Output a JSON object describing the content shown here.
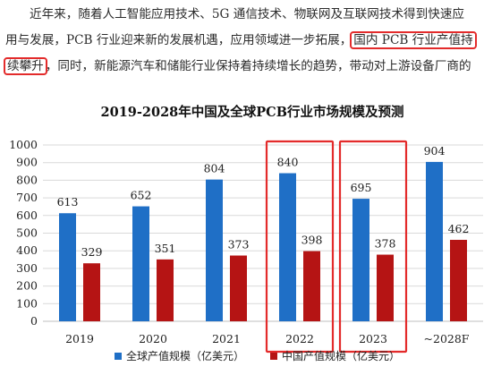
{
  "paragraph": {
    "line1": "近年来，随着人工智能应用技术、5G 通信技术、物联网及互联网技术得到快速应",
    "line2_a": "用与发展，PCB 行业迎来新的发展机遇，应用领域进一步拓展，",
    "line2_hl": "国内 PCB 行业产值持",
    "line3_hl": "续攀升",
    "line3_b": "，同时，新能源汽车和储能行业保持着持续增长的趋势，带动对上游设备厂商的"
  },
  "colors": {
    "global": "#1f6fc6",
    "china": "#b51414",
    "highlight": "#e32b2b",
    "grid": "#d9d9d9"
  },
  "chart_data": {
    "type": "bar",
    "title": "2019-2028年中国及全球PCB行业市场规模及预测",
    "categories": [
      "2019",
      "2020",
      "2021",
      "2022",
      "2023",
      "~2028F"
    ],
    "series": [
      {
        "name": "全球产值规模（亿美元）",
        "values": [
          613,
          652,
          804,
          840,
          695,
          904
        ]
      },
      {
        "name": "中国产值规模（亿美元）",
        "values": [
          329,
          351,
          373,
          398,
          378,
          462
        ]
      }
    ],
    "ylim": [
      0,
      1000
    ],
    "yticks": [
      0,
      100,
      200,
      300,
      400,
      500,
      600,
      700,
      800,
      900,
      1000
    ],
    "grid": true,
    "legend_position": "bottom",
    "highlighted_categories": [
      "2022",
      "2023"
    ]
  }
}
